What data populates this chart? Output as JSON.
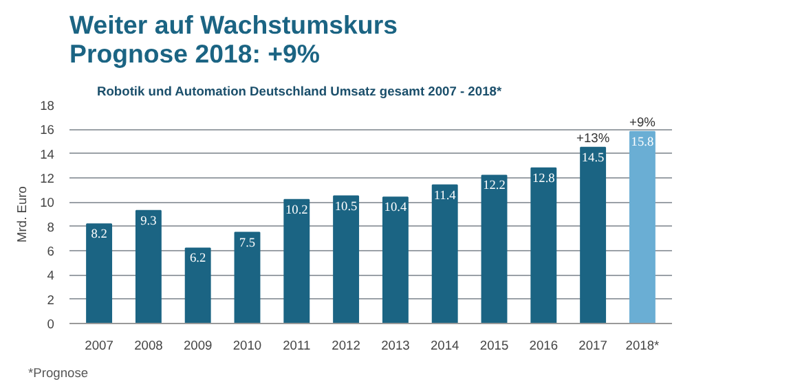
{
  "chart_data": {
    "type": "bar",
    "title": "Weiter auf Wachstumskurs\nPrognose 2018: +9%",
    "subtitle": "Robotik und Automation Deutschland Umsatz gesamt 2007 - 2018*",
    "ylabel": "Mrd. Euro",
    "categories": [
      "2007",
      "2008",
      "2009",
      "2010",
      "2011",
      "2012",
      "2013",
      "2014",
      "2015",
      "2016",
      "2017",
      "2018*"
    ],
    "values": [
      8.2,
      9.3,
      6.2,
      7.5,
      10.2,
      10.5,
      10.4,
      11.4,
      12.2,
      12.8,
      14.5,
      15.8
    ],
    "colors": [
      "#1b6483",
      "#1b6483",
      "#1b6483",
      "#1b6483",
      "#1b6483",
      "#1b6483",
      "#1b6483",
      "#1b6483",
      "#1b6483",
      "#1b6483",
      "#1b6483",
      "#6aaed4"
    ],
    "ylim": [
      0,
      18
    ],
    "yticks": [
      0,
      2,
      4,
      6,
      8,
      10,
      12,
      14,
      16,
      18
    ],
    "grid": "y",
    "data_labels": true,
    "annotations": [
      {
        "text": "+13%",
        "x": "2017",
        "y": 14.5
      },
      {
        "text": "+9%",
        "x": "2018*",
        "y": 15.8
      },
      "*Prognose"
    ]
  }
}
